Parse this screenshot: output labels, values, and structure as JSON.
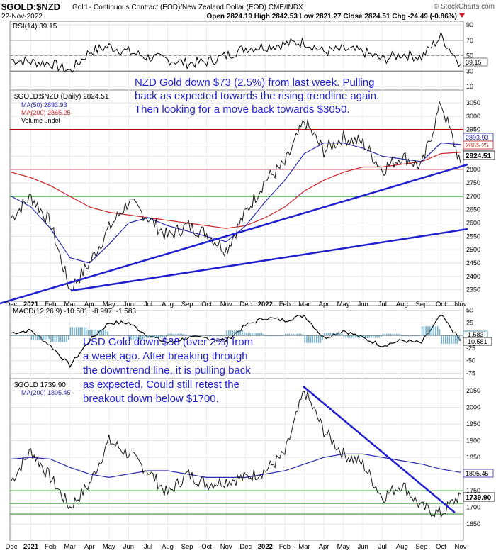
{
  "header": {
    "symbol": "$GOLD:$NZD",
    "description": "Gold - Continuous Contract (EOD)/New Zealand Dollar (EOD)  CME/INDX",
    "source": "© StockCharts.com",
    "date": "22-Nov-2022",
    "ohlc": "Open 2824.19  High 2842.53  Low 2821.27  Close 2824.51  Chg -24.49 (-0.86%)"
  },
  "months": [
    "Dec",
    "2021",
    "Feb",
    "Mar",
    "Apr",
    "May",
    "Jun",
    "Jul",
    "Aug",
    "Sep",
    "Oct",
    "Nov",
    "Dec",
    "2022",
    "Feb",
    "Mar",
    "Apr",
    "May",
    "Jun",
    "Jul",
    "Aug",
    "Sep",
    "Oct",
    "Nov"
  ],
  "rsi": {
    "label": "RSI(14) 39.15",
    "value_tag": "39.15",
    "ticks": [
      10,
      30,
      50,
      70,
      90
    ],
    "ylim": [
      10,
      90
    ]
  },
  "nzd": {
    "legend": [
      "$GOLD:$NZD (Daily) 2824.51",
      "MA(50) 2893.93",
      "MA(200) 2865.25",
      "Volume undef"
    ],
    "tags": [
      "2893.93",
      "2865.25",
      "2824.51"
    ],
    "tag_colors": [
      "#2a2aaa",
      "#cc2222",
      "#000000"
    ],
    "ticks": [
      2350,
      2400,
      2450,
      2500,
      2550,
      2600,
      2650,
      2700,
      2750,
      2800,
      2850,
      2900,
      2950,
      3000,
      3050
    ],
    "ylim": [
      2320,
      3090
    ],
    "hlines": [
      {
        "value": 2950,
        "color": "#c80000"
      },
      {
        "value": 2800,
        "color": "#e9a9b6"
      },
      {
        "value": 2700,
        "color": "#3a9a3a"
      }
    ],
    "annotation": [
      "NZD Gold down $73 (2.5%) from last week. Pulling",
      "back as expected towards the rising trendline again.",
      "Then looking for a move back towards $3050."
    ]
  },
  "macd": {
    "label": "MACD(12,26,9) -10.581, -8.997, -1.583",
    "tags": [
      "-1.583",
      "-10.581"
    ],
    "ticks": [
      50,
      25,
      0,
      -25,
      -50,
      -75
    ],
    "ylim": [
      -80,
      55
    ]
  },
  "usd": {
    "legend": [
      "$GOLD 1739.90",
      "MA(200) 1805.45"
    ],
    "tags": [
      "1805.45",
      "1739.90"
    ],
    "ticks": [
      1650,
      1700,
      1750,
      1800,
      1850,
      1900,
      1950,
      2000,
      2050
    ],
    "ylim": [
      1610,
      2080
    ],
    "hlines": [
      {
        "value": 1750,
        "color": "#3a9a3a"
      },
      {
        "value": 1712,
        "color": "#3a9a3a"
      },
      {
        "value": 1680,
        "color": "#3a9a3a"
      }
    ],
    "annotation": [
      "USD Gold down $38 (over 2%) from",
      "a week ago. After breaking through",
      "the downtrend line, it is pulling back",
      "as expected. Could still retest the",
      "breakout down below $1700."
    ]
  },
  "chart_data": [
    {
      "type": "line",
      "title": "RSI(14) 39.15",
      "ylim": [
        10,
        90
      ],
      "x": [
        "Dec",
        "2021",
        "Feb",
        "Mar",
        "Apr",
        "May",
        "Jun",
        "Jul",
        "Aug",
        "Sep",
        "Oct",
        "Nov",
        "Dec",
        "2022",
        "Feb",
        "Mar",
        "Apr",
        "May",
        "Jun",
        "Jul",
        "Aug",
        "Sep",
        "Oct",
        "Nov"
      ],
      "values": [
        45,
        42,
        40,
        30,
        55,
        62,
        55,
        48,
        45,
        40,
        42,
        50,
        60,
        62,
        65,
        68,
        55,
        58,
        55,
        45,
        52,
        48,
        75,
        39
      ]
    },
    {
      "type": "line",
      "title": "$GOLD:$NZD (Daily) 2824.51",
      "ylim": [
        2320,
        3090
      ],
      "x": [
        "Dec",
        "2021",
        "Feb",
        "Mar",
        "Apr",
        "May",
        "Jun",
        "Jul",
        "Aug",
        "Sep",
        "Oct",
        "Nov",
        "Dec",
        "2022",
        "Feb",
        "Mar",
        "Apr",
        "May",
        "Jun",
        "Jul",
        "Aug",
        "Sep",
        "Oct",
        "Nov"
      ],
      "series": [
        {
          "name": "$GOLD:$NZD (Daily) 2824.51",
          "values": [
            2620,
            2700,
            2600,
            2350,
            2450,
            2580,
            2680,
            2620,
            2550,
            2590,
            2560,
            2500,
            2640,
            2760,
            2820,
            2980,
            2870,
            2920,
            2900,
            2800,
            2850,
            2810,
            3050,
            2824
          ]
        },
        {
          "name": "MA(50) 2893.93",
          "values": [
            2700,
            2660,
            2580,
            2470,
            2450,
            2520,
            2600,
            2620,
            2590,
            2570,
            2550,
            2530,
            2590,
            2680,
            2760,
            2860,
            2900,
            2900,
            2880,
            2850,
            2840,
            2830,
            2900,
            2894
          ]
        },
        {
          "name": "MA(200) 2865.25",
          "values": [
            2790,
            2770,
            2740,
            2700,
            2660,
            2640,
            2630,
            2620,
            2610,
            2600,
            2590,
            2580,
            2590,
            2620,
            2660,
            2720,
            2760,
            2790,
            2810,
            2810,
            2820,
            2830,
            2860,
            2865
          ]
        }
      ]
    },
    {
      "type": "line",
      "title": "MACD(12,26,9) -10.581, -8.997, -1.583",
      "ylim": [
        -80,
        55
      ],
      "x": [
        "Dec",
        "2021",
        "Feb",
        "Mar",
        "Apr",
        "May",
        "Jun",
        "Jul",
        "Aug",
        "Sep",
        "Oct",
        "Nov",
        "Dec",
        "2022",
        "Feb",
        "Mar",
        "Apr",
        "May",
        "Jun",
        "Jul",
        "Aug",
        "Sep",
        "Oct",
        "Nov"
      ],
      "values": [
        5,
        10,
        -20,
        -60,
        -10,
        25,
        25,
        0,
        -15,
        -5,
        -5,
        -10,
        20,
        35,
        30,
        40,
        -5,
        10,
        -5,
        -20,
        -10,
        -15,
        40,
        -10.581
      ]
    },
    {
      "type": "line",
      "title": "$GOLD 1739.90",
      "ylim": [
        1610,
        2080
      ],
      "x": [
        "Dec",
        "2021",
        "Feb",
        "Mar",
        "Apr",
        "May",
        "Jun",
        "Jul",
        "Aug",
        "Sep",
        "Oct",
        "Nov",
        "Dec",
        "2022",
        "Feb",
        "Mar",
        "Apr",
        "May",
        "Jun",
        "Jul",
        "Aug",
        "Sep",
        "Oct",
        "Nov"
      ],
      "series": [
        {
          "name": "$GOLD 1739.90",
          "values": [
            1780,
            1870,
            1790,
            1700,
            1770,
            1900,
            1860,
            1810,
            1740,
            1800,
            1770,
            1780,
            1790,
            1810,
            1860,
            2050,
            1930,
            1860,
            1830,
            1730,
            1770,
            1700,
            1680,
            1740
          ]
        },
        {
          "name": "MA(200) 1805.45",
          "values": [
            1845,
            1850,
            1845,
            1820,
            1800,
            1790,
            1800,
            1810,
            1810,
            1800,
            1790,
            1790,
            1790,
            1800,
            1810,
            1830,
            1850,
            1860,
            1860,
            1850,
            1840,
            1830,
            1815,
            1805
          ]
        }
      ]
    }
  ]
}
